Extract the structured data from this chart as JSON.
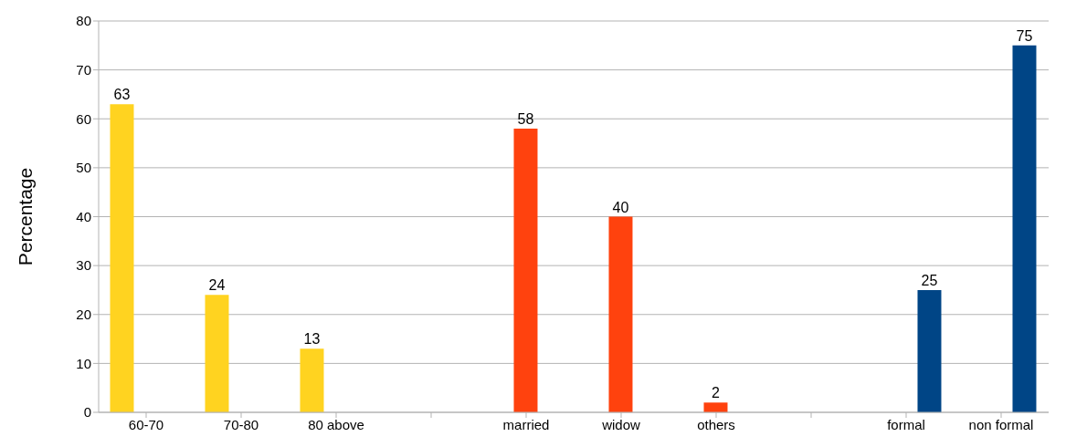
{
  "chart_data": {
    "type": "bar",
    "ylabel": "Percentage",
    "categories": [
      "60-70",
      "70-80",
      "80 above",
      null,
      "married",
      "widow",
      "others",
      null,
      "formal",
      "non formal"
    ],
    "series": [
      {
        "color": "#ffd320",
        "values": [
          63,
          24,
          13,
          null,
          null,
          null,
          null,
          null,
          null,
          null
        ]
      },
      {
        "color": "#ff420e",
        "values": [
          null,
          null,
          null,
          null,
          58,
          40,
          2,
          null,
          null,
          null
        ]
      },
      {
        "color": "#004586",
        "values": [
          null,
          null,
          null,
          null,
          null,
          null,
          null,
          null,
          25,
          75
        ]
      }
    ],
    "ylim": [
      0,
      80
    ],
    "yticks": [
      0,
      10,
      20,
      30,
      40,
      50,
      60,
      70,
      80
    ],
    "grid": "y",
    "data_labels": true,
    "legend": false
  }
}
